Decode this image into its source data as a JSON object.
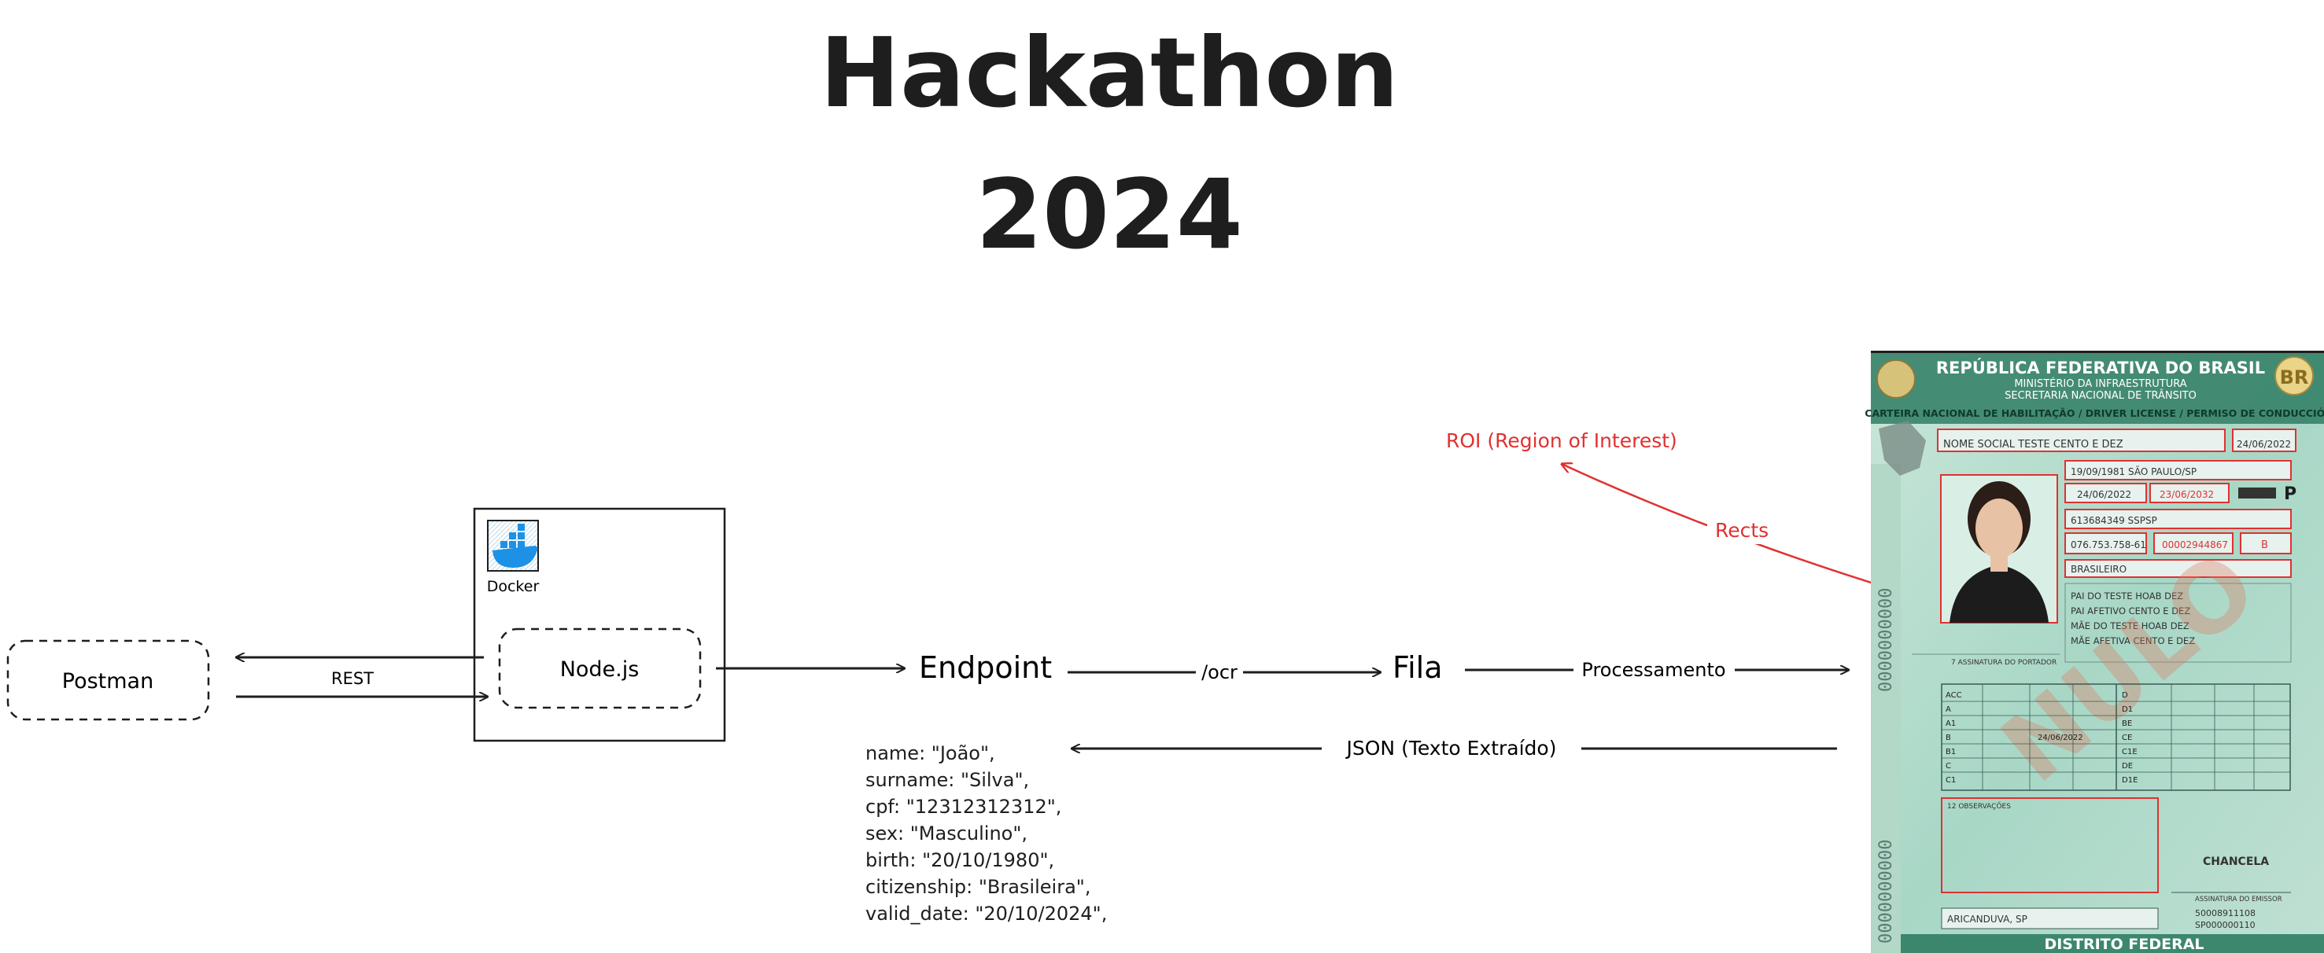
{
  "title": {
    "line1": "Hackathon",
    "line2": "2024"
  },
  "nodes": {
    "postman": "Postman",
    "docker": "Docker",
    "nodejs": "Node.js",
    "endpoint": "Endpoint",
    "fila": "Fila"
  },
  "edges": {
    "rest": "REST",
    "ocr": "/ocr",
    "processamento": "Processamento",
    "json": "JSON (Texto Extraído)"
  },
  "annotations": {
    "roi": "ROI (Region of Interest)",
    "rects": "Rects"
  },
  "json_output": [
    "name: \"João\",",
    "surname: \"Silva\",",
    "cpf: \"12312312312\",",
    "sex: \"Masculino\",",
    "birth: \"20/10/1980\",",
    "citizenship: \"Brasileira\",",
    "valid_date: \"20/10/2024\","
  ],
  "license": {
    "header1": "REPÚBLICA FEDERATIVA DO BRASIL",
    "header2": "MINISTÉRIO DA INFRAESTRUTURA",
    "header3": "SECRETARIA NACIONAL DE TRÂNSITO",
    "badge": "BR",
    "doc_type": "CARTEIRA NACIONAL DE HABILITAÇÃO / DRIVER LICENSE / PERMISO DE CONDUCCIÓN",
    "name": "NOME SOCIAL TESTE CENTO E DEZ",
    "first_license": "24/06/2022",
    "birth": "19/09/1981 SÃO PAULO/SP",
    "issue": "24/06/2022",
    "validity": "23/06/2032",
    "category_letter": "P",
    "doc_id": "613684349 SSPSP",
    "cpf": "076.753.758-61",
    "register": "00002944867",
    "category": "B",
    "nationality": "BRASILEIRO",
    "filiation": [
      "PAI DO TESTE HOAB DEZ",
      "PAI AFETIVO CENTO E DEZ",
      "MÃE DO TESTE HOAB DEZ",
      "MÃE AFETIVA CENTO E DEZ"
    ],
    "signature_label": "7 ASSINATURA DO PORTADOR",
    "cat_rows": [
      "ACC",
      "A",
      "A1",
      "B",
      "B1",
      "C",
      "C1"
    ],
    "cat_rows_right": [
      "D",
      "D1",
      "BE",
      "CE",
      "C1E",
      "DE",
      "D1E"
    ],
    "cat_date": "24/06/2022",
    "obs_label": "12 OBSERVAÇÕES",
    "chancela": "CHANCELA",
    "emissor_label": "ASSINATURA DO EMISSOR",
    "local": "ARICANDUVA, SP",
    "serial1": "50008911108",
    "serial2": "SP000000110",
    "footer": "DISTRITO FEDERAL",
    "watermark": "NULO",
    "side_number": "0000000000"
  }
}
